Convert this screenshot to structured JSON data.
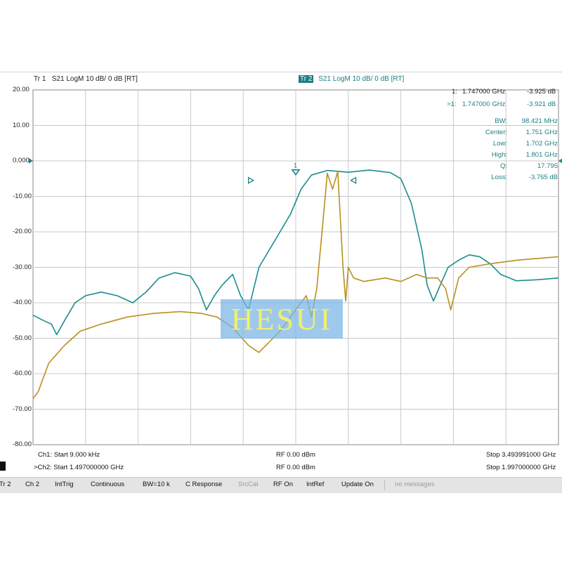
{
  "header": {
    "tr1_label": "Tr 1",
    "tr1_text": "S21 LogM 10 dB/ 0 dB [RT]",
    "tr2_label": "Tr 2",
    "tr2_text": "S21 LogM 10 dB/ 0 dB [RT]"
  },
  "y_axis": {
    "ticks": [
      "20.00",
      "10.00",
      "0.000",
      "-10.00",
      "-20.00",
      "-30.00",
      "-40.00",
      "-50.00",
      "-60.00",
      "-70.00",
      "-80.00"
    ]
  },
  "markers": {
    "m1_ch1": {
      "label": "1:",
      "freq": "1.747000 GHz",
      "value": "-3.925 dB"
    },
    "m1_ch2": {
      "label": ">1:",
      "freq": "1.747000 GHz",
      "value": "-3.921 dB"
    },
    "marker_number": "1",
    "stats": [
      {
        "label": "BW:",
        "value": "98.421 MHz"
      },
      {
        "label": "Center:",
        "value": "1.751 GHz"
      },
      {
        "label": "Low:",
        "value": "1.702 GHz"
      },
      {
        "label": "High:",
        "value": "1.801 GHz"
      },
      {
        "label": "Q:",
        "value": "17.795"
      },
      {
        "label": "Loss:",
        "value": "-3.765 dB"
      }
    ]
  },
  "footer": {
    "ch1_start": "Ch1: Start 9.000 kHz",
    "ch1_rf": "RF 0.00 dBm",
    "ch1_stop": "Stop 3.493991000 GHz",
    "ch2_start": ">Ch2: Start 1.497000000 GHz",
    "ch2_rf": "RF 0.00 dBm",
    "ch2_stop": "Stop 1.997000000 GHz"
  },
  "softkeys": [
    "Tr 2",
    "Ch 2",
    "IntTrig",
    "Continuous",
    "BW=10 k",
    "C Response",
    "SrcCal",
    "RF On",
    "IntRef",
    "Update On"
  ],
  "status_message": "no messages",
  "watermark": "HESUI",
  "colors": {
    "trace_ch1": "#b8901e",
    "trace_ch2": "#1b8c8f",
    "grid": "#c8c8c8"
  },
  "chart_data": {
    "type": "line",
    "ylim": [
      -80,
      20
    ],
    "y_unit": "dB",
    "series": [
      {
        "name": "Tr 2",
        "points": [
          [
            0,
            -43.5
          ],
          [
            0.02,
            -45
          ],
          [
            0.035,
            -46
          ],
          [
            0.045,
            -49
          ],
          [
            0.06,
            -45
          ],
          [
            0.08,
            -40
          ],
          [
            0.1,
            -38
          ],
          [
            0.13,
            -37
          ],
          [
            0.16,
            -38
          ],
          [
            0.19,
            -40
          ],
          [
            0.215,
            -37
          ],
          [
            0.24,
            -33
          ],
          [
            0.27,
            -31.5
          ],
          [
            0.3,
            -32.5
          ],
          [
            0.315,
            -36
          ],
          [
            0.33,
            -42
          ],
          [
            0.345,
            -38
          ],
          [
            0.36,
            -35
          ],
          [
            0.38,
            -32
          ],
          [
            0.395,
            -38
          ],
          [
            0.41,
            -42
          ],
          [
            0.42,
            -36
          ],
          [
            0.43,
            -30
          ],
          [
            0.45,
            -25
          ],
          [
            0.47,
            -20
          ],
          [
            0.49,
            -15
          ],
          [
            0.51,
            -8
          ],
          [
            0.53,
            -4
          ],
          [
            0.56,
            -2.7
          ],
          [
            0.6,
            -3.2
          ],
          [
            0.64,
            -2.6
          ],
          [
            0.68,
            -3.3
          ],
          [
            0.7,
            -5
          ],
          [
            0.72,
            -12
          ],
          [
            0.74,
            -25
          ],
          [
            0.75,
            -35
          ],
          [
            0.762,
            -39.5
          ],
          [
            0.775,
            -35
          ],
          [
            0.79,
            -30
          ],
          [
            0.81,
            -28
          ],
          [
            0.83,
            -26.5
          ],
          [
            0.85,
            -27
          ],
          [
            0.87,
            -29
          ],
          [
            0.89,
            -32
          ],
          [
            0.92,
            -33.8
          ],
          [
            0.96,
            -33.5
          ],
          [
            1.0,
            -33
          ]
        ]
      },
      {
        "name": "Tr 1",
        "points": [
          [
            0,
            -67
          ],
          [
            0.01,
            -65
          ],
          [
            0.03,
            -57
          ],
          [
            0.06,
            -52
          ],
          [
            0.09,
            -48
          ],
          [
            0.13,
            -46
          ],
          [
            0.18,
            -44
          ],
          [
            0.23,
            -43
          ],
          [
            0.28,
            -42.5
          ],
          [
            0.32,
            -43
          ],
          [
            0.35,
            -44
          ],
          [
            0.38,
            -47
          ],
          [
            0.41,
            -52
          ],
          [
            0.43,
            -54
          ],
          [
            0.45,
            -51
          ],
          [
            0.47,
            -48
          ],
          [
            0.49,
            -44
          ],
          [
            0.51,
            -40
          ],
          [
            0.52,
            -38
          ],
          [
            0.53,
            -44
          ],
          [
            0.54,
            -36
          ],
          [
            0.55,
            -20
          ],
          [
            0.56,
            -3.5
          ],
          [
            0.57,
            -8
          ],
          [
            0.58,
            -3
          ],
          [
            0.59,
            -30
          ],
          [
            0.595,
            -39.5
          ],
          [
            0.6,
            -30
          ],
          [
            0.61,
            -33
          ],
          [
            0.63,
            -34
          ],
          [
            0.67,
            -33
          ],
          [
            0.7,
            -34
          ],
          [
            0.73,
            -32
          ],
          [
            0.75,
            -33
          ],
          [
            0.77,
            -33
          ],
          [
            0.785,
            -36
          ],
          [
            0.795,
            -42
          ],
          [
            0.81,
            -33
          ],
          [
            0.83,
            -30
          ],
          [
            0.87,
            -29
          ],
          [
            0.92,
            -28
          ],
          [
            0.96,
            -27.5
          ],
          [
            1.0,
            -27
          ]
        ]
      }
    ]
  }
}
